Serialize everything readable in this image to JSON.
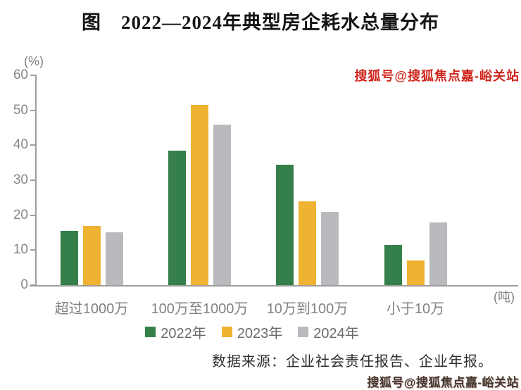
{
  "watermark_top": "搜狐号@搜狐焦点嘉-峪关站",
  "watermark_bottom": "搜狐号@搜狐焦点嘉-峪关站",
  "source_note": "数据来源：企业社会责任报告、企业年报。",
  "chart_data": {
    "type": "bar",
    "title": "图　2022—2024年典型房企耗水总量分布",
    "y_unit_label": "(%)",
    "x_unit_label": "(吨)",
    "categories": [
      "超过1000万",
      "100万至1000万",
      "10万到100万",
      "小于10万"
    ],
    "series": [
      {
        "name": "2022年",
        "color": "#35804a",
        "values": [
          15.5,
          38.5,
          34.5,
          11.5
        ]
      },
      {
        "name": "2023年",
        "color": "#efb231",
        "values": [
          17,
          51.5,
          24,
          7
        ]
      },
      {
        "name": "2024年",
        "color": "#b9babe",
        "values": [
          15,
          46,
          21,
          18
        ]
      }
    ],
    "yticks": [
      0,
      10,
      20,
      30,
      40,
      50,
      60
    ],
    "ylim": [
      0,
      60
    ],
    "grid": false,
    "legend_position": "bottom"
  }
}
